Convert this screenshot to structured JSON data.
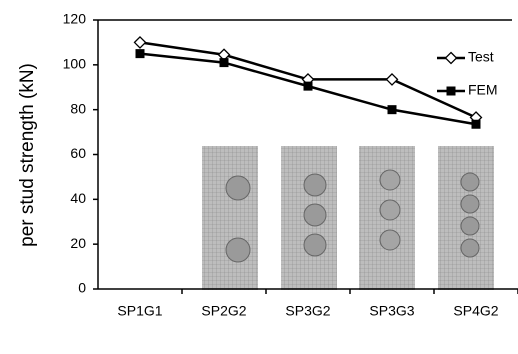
{
  "chart_data": {
    "type": "line",
    "y_label": "per stud strength (kN)",
    "categories": [
      "SP1G1",
      "SP2G2",
      "SP3G2",
      "SP3G3",
      "SP4G2"
    ],
    "series": [
      {
        "name": "Test",
        "color": "#000000",
        "marker": "diamond",
        "values": [
          110,
          104.5,
          93.5,
          93.5,
          76.5
        ]
      },
      {
        "name": "FEM",
        "color": "#000000",
        "marker": "square",
        "values": [
          105,
          101,
          90.5,
          80,
          73.5
        ]
      }
    ],
    "ylim": [
      0,
      120
    ],
    "yticks": [
      0,
      20,
      40,
      60,
      80,
      100,
      120
    ],
    "grid": false
  }
}
